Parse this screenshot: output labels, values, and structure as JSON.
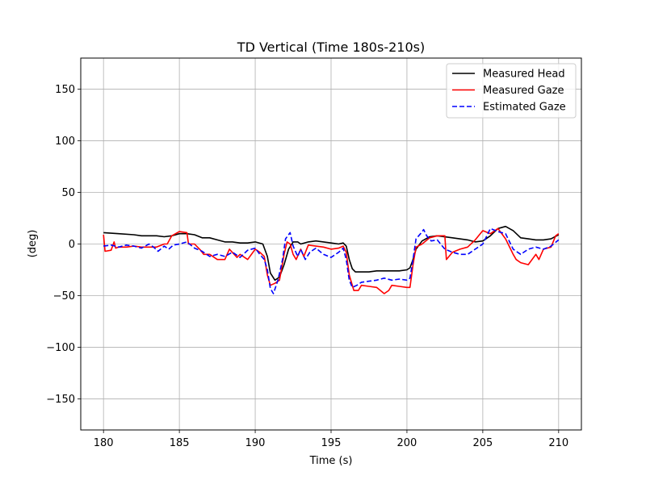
{
  "chart_data": {
    "type": "line",
    "title": "TD Vertical (Time 180s-210s)",
    "xlabel": "Time (s)",
    "ylabel": "(deg)",
    "xlim": [
      178.5,
      211.5
    ],
    "ylim": [
      -180,
      180
    ],
    "xticks": [
      180,
      185,
      190,
      195,
      200,
      205,
      210
    ],
    "yticks": [
      -150,
      -100,
      -50,
      0,
      50,
      100,
      150
    ],
    "ytick_labels": [
      "−150",
      "−100",
      "−50",
      "0",
      "50",
      "100",
      "150"
    ],
    "grid": true,
    "legend_position": "top-right",
    "series": [
      {
        "name": "Measured Head",
        "color": "#000000",
        "dash": "solid",
        "x": [
          180,
          181,
          182,
          182.5,
          183,
          183.5,
          184,
          184.5,
          185,
          185.5,
          186,
          186.5,
          187,
          187.5,
          188,
          188.5,
          189,
          189.5,
          190,
          190.5,
          190.8,
          191,
          191.3,
          191.6,
          191.9,
          192.2,
          192.5,
          192.8,
          193,
          193.5,
          194,
          194.5,
          195,
          195.5,
          195.8,
          196,
          196.2,
          196.4,
          196.6,
          197,
          197.5,
          198,
          199,
          199.5,
          200,
          200.2,
          200.4,
          200.6,
          201,
          201.5,
          202,
          203,
          204,
          204.5,
          205,
          205.5,
          206,
          206.5,
          207,
          207.5,
          208,
          208.5,
          209,
          209.5,
          210
        ],
        "y": [
          11,
          10,
          9,
          8,
          8,
          8,
          7,
          8,
          10,
          10,
          9,
          6,
          6,
          4,
          2,
          2,
          1,
          1,
          2,
          0,
          -12,
          -28,
          -35,
          -32,
          -20,
          -5,
          2,
          2,
          0,
          2,
          3,
          2,
          1,
          0,
          1,
          -2,
          -15,
          -24,
          -27,
          -27,
          -27,
          -26,
          -26,
          -26,
          -25,
          -23,
          -15,
          -5,
          3,
          7,
          8,
          6,
          4,
          2,
          3,
          8,
          15,
          17,
          13,
          6,
          5,
          4,
          4,
          5,
          9
        ]
      },
      {
        "name": "Measured Gaze",
        "color": "#ff0000",
        "dash": "solid",
        "x": [
          180,
          180.1,
          180.5,
          180.7,
          180.8,
          181,
          181.5,
          182,
          182.5,
          183,
          183.5,
          184,
          184.2,
          184.5,
          185,
          185.5,
          185.6,
          186,
          186.4,
          186.6,
          187,
          187.5,
          188,
          188.3,
          188.8,
          189,
          189.5,
          190,
          190.3,
          190.6,
          190.8,
          191,
          191.3,
          191.6,
          191.9,
          192.1,
          192.3,
          192.5,
          192.7,
          193,
          193.2,
          193.5,
          194,
          194.5,
          195,
          195.5,
          195.8,
          196,
          196.2,
          196.5,
          196.8,
          197,
          197.5,
          198,
          198.5,
          198.8,
          199,
          199.5,
          200,
          200.2,
          200.4,
          200.6,
          201,
          201.5,
          202,
          202.5,
          202.6,
          203,
          203.5,
          204,
          204.5,
          205,
          205.5,
          206,
          206.5,
          207,
          207.2,
          207.5,
          208,
          208.5,
          208.7,
          209,
          209.5,
          209.8,
          210
        ],
        "y": [
          9,
          -7,
          -6,
          2,
          -4,
          -3,
          -3,
          -2,
          -3,
          -3,
          -3,
          0,
          0,
          8,
          12,
          11,
          0,
          0,
          -6,
          -10,
          -10,
          -15,
          -15,
          -5,
          -13,
          -10,
          -15,
          -5,
          -8,
          -12,
          -30,
          -40,
          -38,
          -35,
          -10,
          2,
          0,
          -10,
          -15,
          -5,
          -12,
          -1,
          -2,
          -3,
          -5,
          -4,
          -2,
          -8,
          -30,
          -45,
          -45,
          -40,
          -41,
          -42,
          -48,
          -45,
          -40,
          -41,
          -42,
          -42,
          -20,
          -3,
          0,
          6,
          8,
          8,
          -15,
          -8,
          -5,
          -3,
          4,
          13,
          10,
          15,
          5,
          -10,
          -15,
          -18,
          -20,
          -10,
          -15,
          -5,
          -3,
          8,
          10
        ]
      },
      {
        "name": "Estimated Gaze",
        "color": "#0000ff",
        "dash": "dashed",
        "x": [
          180,
          180.5,
          181,
          181.5,
          182,
          182.5,
          183,
          183.3,
          183.6,
          184,
          184.3,
          184.6,
          185,
          185.5,
          186,
          186.5,
          187,
          187.5,
          188,
          188.5,
          189,
          189.5,
          190,
          190.3,
          190.6,
          190.8,
          191,
          191.2,
          191.5,
          191.8,
          192,
          192.3,
          192.5,
          192.8,
          193,
          193.3,
          193.6,
          194,
          194.5,
          195,
          195.5,
          195.8,
          196,
          196.2,
          196.4,
          196.7,
          197,
          197.5,
          198,
          198.5,
          199,
          199.5,
          200,
          200.2,
          200.4,
          200.6,
          200.9,
          201.1,
          201.3,
          201.6,
          202,
          202.5,
          203,
          203.5,
          204,
          204.5,
          205,
          205.5,
          206,
          206.5,
          207,
          207.5,
          208,
          208.5,
          209,
          209.5,
          210
        ],
        "y": [
          -2,
          -1,
          -3,
          -1,
          -2,
          -4,
          0,
          -3,
          -7,
          -2,
          -5,
          -1,
          0,
          2,
          -4,
          -7,
          -12,
          -10,
          -12,
          -8,
          -13,
          -6,
          -4,
          -10,
          -15,
          -25,
          -43,
          -48,
          -35,
          -15,
          5,
          11,
          -2,
          -12,
          -5,
          -15,
          -8,
          -4,
          -10,
          -13,
          -8,
          -4,
          -15,
          -35,
          -42,
          -40,
          -37,
          -36,
          -35,
          -33,
          -35,
          -34,
          -35,
          -33,
          -15,
          5,
          10,
          14,
          8,
          3,
          4,
          -5,
          -8,
          -10,
          -10,
          -5,
          0,
          15,
          12,
          10,
          -5,
          -10,
          -5,
          -3,
          -5,
          -2,
          4
        ]
      }
    ]
  }
}
